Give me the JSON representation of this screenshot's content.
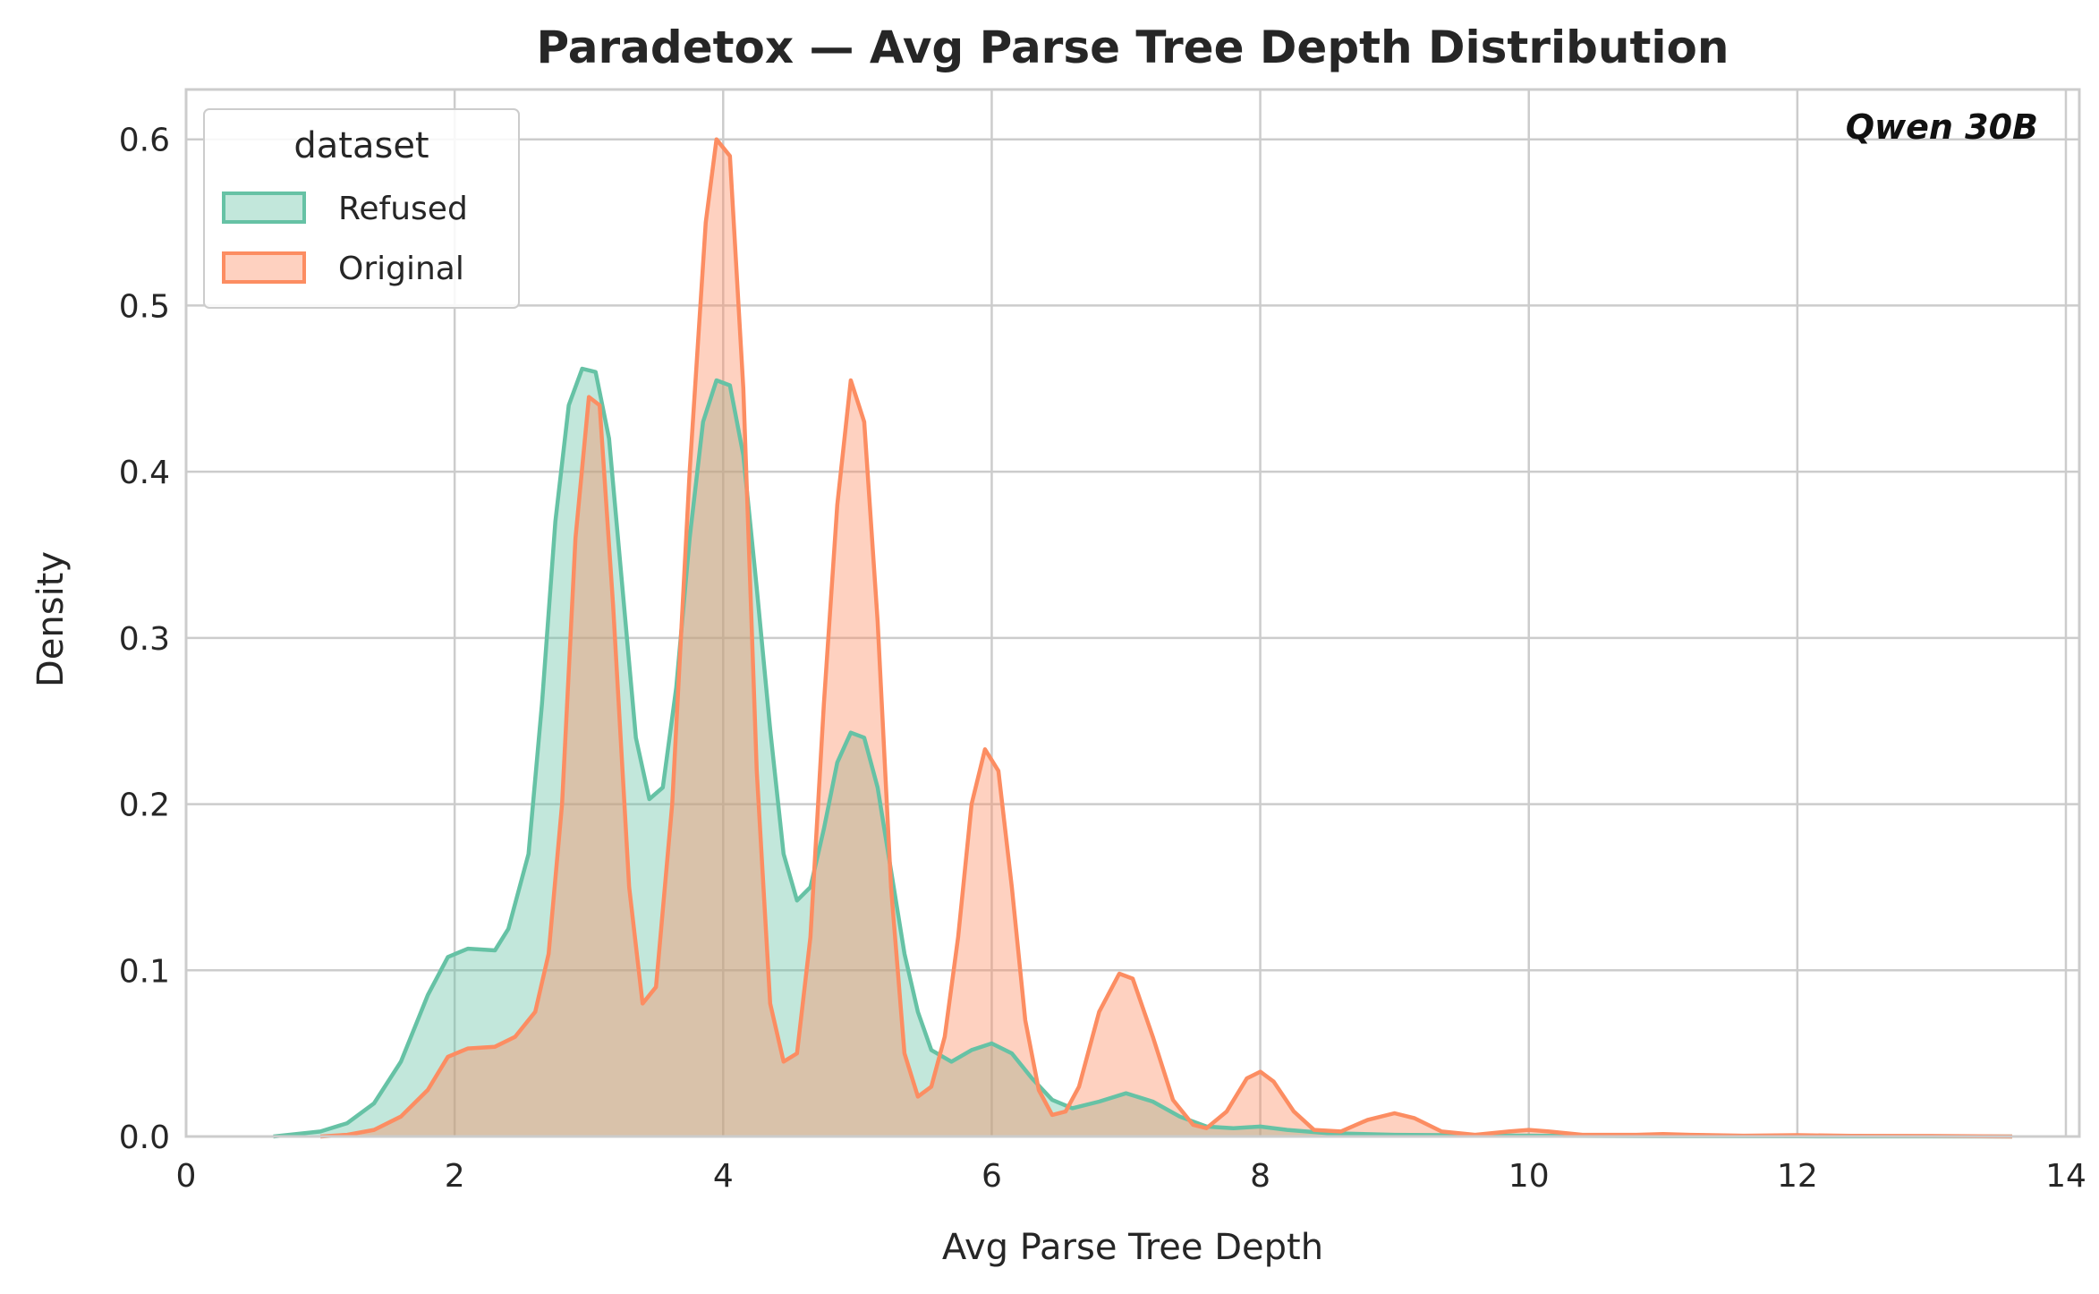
{
  "chart_data": {
    "type": "area",
    "title": "Paradetox — Avg Parse Tree Depth Distribution",
    "xlabel": "Avg Parse Tree Depth",
    "ylabel": "Density",
    "xlim": [
      0,
      14.1
    ],
    "ylim": [
      0,
      0.63
    ],
    "xticks": [
      0,
      2,
      4,
      6,
      8,
      10,
      12,
      14
    ],
    "xtick_labels": [
      "0",
      "2",
      "4",
      "6",
      "8",
      "10",
      "12",
      "14"
    ],
    "yticks": [
      0,
      0.1,
      0.2,
      0.3,
      0.4,
      0.5,
      0.6
    ],
    "ytick_labels": [
      "0.0",
      "0.1",
      "0.2",
      "0.3",
      "0.4",
      "0.5",
      "0.6"
    ],
    "grid": true,
    "legend": {
      "title": "dataset",
      "placement": "top-left"
    },
    "annotation": "Qwen 30B",
    "series": [
      {
        "name": "Refused",
        "color": "#66c2a5",
        "points": [
          [
            0.65,
            0.0
          ],
          [
            1.0,
            0.003
          ],
          [
            1.2,
            0.008
          ],
          [
            1.4,
            0.02
          ],
          [
            1.6,
            0.045
          ],
          [
            1.8,
            0.085
          ],
          [
            1.95,
            0.108
          ],
          [
            2.1,
            0.113
          ],
          [
            2.3,
            0.112
          ],
          [
            2.4,
            0.125
          ],
          [
            2.55,
            0.17
          ],
          [
            2.65,
            0.26
          ],
          [
            2.75,
            0.37
          ],
          [
            2.85,
            0.44
          ],
          [
            2.95,
            0.462
          ],
          [
            3.05,
            0.46
          ],
          [
            3.15,
            0.42
          ],
          [
            3.25,
            0.33
          ],
          [
            3.35,
            0.24
          ],
          [
            3.45,
            0.203
          ],
          [
            3.55,
            0.21
          ],
          [
            3.65,
            0.27
          ],
          [
            3.75,
            0.36
          ],
          [
            3.85,
            0.43
          ],
          [
            3.95,
            0.455
          ],
          [
            4.05,
            0.452
          ],
          [
            4.15,
            0.41
          ],
          [
            4.25,
            0.33
          ],
          [
            4.35,
            0.245
          ],
          [
            4.45,
            0.17
          ],
          [
            4.55,
            0.142
          ],
          [
            4.65,
            0.15
          ],
          [
            4.75,
            0.185
          ],
          [
            4.85,
            0.225
          ],
          [
            4.95,
            0.243
          ],
          [
            5.05,
            0.24
          ],
          [
            5.15,
            0.21
          ],
          [
            5.25,
            0.16
          ],
          [
            5.35,
            0.11
          ],
          [
            5.45,
            0.075
          ],
          [
            5.55,
            0.052
          ],
          [
            5.7,
            0.045
          ],
          [
            5.85,
            0.052
          ],
          [
            6.0,
            0.056
          ],
          [
            6.15,
            0.05
          ],
          [
            6.3,
            0.035
          ],
          [
            6.45,
            0.022
          ],
          [
            6.6,
            0.017
          ],
          [
            6.8,
            0.021
          ],
          [
            7.0,
            0.026
          ],
          [
            7.2,
            0.021
          ],
          [
            7.4,
            0.012
          ],
          [
            7.6,
            0.006
          ],
          [
            7.8,
            0.005
          ],
          [
            8.0,
            0.006
          ],
          [
            8.2,
            0.004
          ],
          [
            8.5,
            0.002
          ],
          [
            9.0,
            0.001
          ],
          [
            10.0,
            0.0005
          ],
          [
            11.0,
            0.0002
          ],
          [
            12.0,
            0.0001
          ],
          [
            13.6,
            0.0
          ]
        ]
      },
      {
        "name": "Original",
        "color": "#fc8d62",
        "points": [
          [
            1.0,
            0.0
          ],
          [
            1.2,
            0.001
          ],
          [
            1.4,
            0.004
          ],
          [
            1.6,
            0.012
          ],
          [
            1.8,
            0.028
          ],
          [
            1.95,
            0.048
          ],
          [
            2.1,
            0.053
          ],
          [
            2.3,
            0.054
          ],
          [
            2.45,
            0.06
          ],
          [
            2.6,
            0.075
          ],
          [
            2.7,
            0.11
          ],
          [
            2.8,
            0.2
          ],
          [
            2.9,
            0.36
          ],
          [
            3.0,
            0.445
          ],
          [
            3.08,
            0.44
          ],
          [
            3.18,
            0.32
          ],
          [
            3.3,
            0.15
          ],
          [
            3.4,
            0.08
          ],
          [
            3.5,
            0.09
          ],
          [
            3.62,
            0.2
          ],
          [
            3.75,
            0.4
          ],
          [
            3.87,
            0.55
          ],
          [
            3.95,
            0.6
          ],
          [
            4.05,
            0.59
          ],
          [
            4.15,
            0.45
          ],
          [
            4.25,
            0.22
          ],
          [
            4.35,
            0.08
          ],
          [
            4.45,
            0.045
          ],
          [
            4.55,
            0.05
          ],
          [
            4.65,
            0.12
          ],
          [
            4.75,
            0.26
          ],
          [
            4.85,
            0.38
          ],
          [
            4.95,
            0.455
          ],
          [
            5.05,
            0.43
          ],
          [
            5.15,
            0.31
          ],
          [
            5.25,
            0.15
          ],
          [
            5.35,
            0.05
          ],
          [
            5.45,
            0.024
          ],
          [
            5.55,
            0.03
          ],
          [
            5.65,
            0.06
          ],
          [
            5.75,
            0.12
          ],
          [
            5.85,
            0.2
          ],
          [
            5.95,
            0.233
          ],
          [
            6.05,
            0.22
          ],
          [
            6.15,
            0.15
          ],
          [
            6.25,
            0.07
          ],
          [
            6.35,
            0.028
          ],
          [
            6.45,
            0.013
          ],
          [
            6.55,
            0.015
          ],
          [
            6.65,
            0.03
          ],
          [
            6.8,
            0.075
          ],
          [
            6.95,
            0.098
          ],
          [
            7.05,
            0.095
          ],
          [
            7.2,
            0.06
          ],
          [
            7.35,
            0.022
          ],
          [
            7.5,
            0.007
          ],
          [
            7.6,
            0.005
          ],
          [
            7.75,
            0.015
          ],
          [
            7.9,
            0.035
          ],
          [
            8.0,
            0.039
          ],
          [
            8.1,
            0.033
          ],
          [
            8.25,
            0.015
          ],
          [
            8.4,
            0.004
          ],
          [
            8.6,
            0.003
          ],
          [
            8.8,
            0.01
          ],
          [
            9.0,
            0.014
          ],
          [
            9.15,
            0.011
          ],
          [
            9.35,
            0.003
          ],
          [
            9.6,
            0.001
          ],
          [
            9.85,
            0.003
          ],
          [
            10.0,
            0.004
          ],
          [
            10.15,
            0.003
          ],
          [
            10.4,
            0.001
          ],
          [
            10.8,
            0.001
          ],
          [
            11.0,
            0.0015
          ],
          [
            11.2,
            0.001
          ],
          [
            11.6,
            0.0005
          ],
          [
            12.0,
            0.0008
          ],
          [
            12.4,
            0.0004
          ],
          [
            13.0,
            0.0003
          ],
          [
            13.6,
            0.0
          ]
        ]
      }
    ]
  }
}
